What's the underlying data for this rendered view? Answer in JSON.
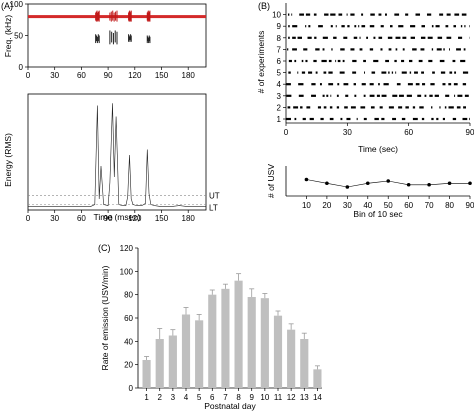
{
  "chart_data": [
    {
      "panel": "(A)",
      "type": "line",
      "subplot": "spectrogram",
      "ylabel": "Freq. (kHz)",
      "xlabel": "",
      "xlim": [
        0,
        200
      ],
      "ylim": [
        0,
        100
      ],
      "xticks": [
        0,
        30,
        60,
        90,
        120,
        150,
        180
      ],
      "yticks": [
        0,
        50,
        100
      ],
      "red_band_level": 80,
      "calls": [
        {
          "start": 76,
          "end": 80,
          "low": 38,
          "high": 52
        },
        {
          "start": 92,
          "end": 100,
          "low": 36,
          "high": 58
        },
        {
          "start": 113,
          "end": 116,
          "low": 40,
          "high": 52
        },
        {
          "start": 134,
          "end": 137,
          "low": 38,
          "high": 50
        }
      ]
    },
    {
      "panel": "(A)",
      "type": "line",
      "subplot": "energy",
      "ylabel": "Energy (RMS)",
      "xlabel": "Time (msec)",
      "xlim": [
        0,
        200
      ],
      "xticks": [
        0,
        30,
        60,
        90,
        120,
        150,
        180
      ],
      "ylim": [
        0,
        1
      ],
      "thresholds": [
        {
          "name": "UT",
          "value": 0.13
        },
        {
          "name": "LT",
          "value": 0.05
        }
      ],
      "x": [
        0,
        20,
        40,
        60,
        70,
        75,
        78,
        80,
        82,
        85,
        90,
        92,
        95,
        97,
        99,
        102,
        106,
        110,
        112,
        114,
        116,
        118,
        122,
        128,
        132,
        134,
        136,
        138,
        142,
        150,
        160,
        170,
        180,
        190,
        200
      ],
      "y": [
        0.03,
        0.03,
        0.03,
        0.03,
        0.03,
        0.05,
        0.95,
        0.1,
        0.4,
        0.05,
        0.04,
        0.25,
        0.97,
        0.3,
        0.85,
        0.05,
        0.04,
        0.04,
        0.12,
        0.5,
        0.1,
        0.05,
        0.04,
        0.04,
        0.06,
        0.55,
        0.15,
        0.05,
        0.04,
        0.03,
        0.03,
        0.04,
        0.03,
        0.03,
        0.03
      ]
    },
    {
      "panel": "(B)",
      "type": "scatter",
      "subplot": "raster",
      "ylabel": "# of experiments",
      "xlabel": "Time (sec)",
      "xlim": [
        0,
        90
      ],
      "xticks": [
        0,
        30,
        60,
        90
      ],
      "yticks": [
        1,
        2,
        3,
        4,
        5,
        6,
        7,
        8,
        9,
        10
      ],
      "rows": 10
    },
    {
      "panel": "(B)",
      "type": "line",
      "subplot": "bins",
      "ylabel": "# of USV",
      "xlabel": "Bin of 10 sec",
      "categories": [
        10,
        20,
        30,
        40,
        50,
        60,
        70,
        80,
        90
      ],
      "values": [
        22,
        17,
        12,
        17,
        20,
        15,
        15,
        17,
        17
      ],
      "ylim": [
        0,
        40
      ]
    },
    {
      "panel": "(C)",
      "type": "bar",
      "ylabel": "Rate of emission (USV/min)",
      "xlabel": "Postnatal day",
      "categories": [
        "1",
        "2",
        "3",
        "4",
        "5",
        "6",
        "7",
        "8",
        "9",
        "10",
        "11",
        "12",
        "13",
        "14"
      ],
      "values": [
        24,
        42,
        45,
        63,
        58,
        80,
        85,
        92,
        78,
        77,
        62,
        50,
        42,
        16
      ],
      "errors": [
        3,
        9,
        5,
        6,
        5,
        4,
        4,
        6,
        7,
        4,
        4,
        5,
        5,
        3
      ],
      "ylim": [
        0,
        120
      ],
      "yticks": [
        0,
        20,
        40,
        60,
        80,
        100,
        120
      ],
      "bar_color": "#bfbfbf"
    }
  ]
}
